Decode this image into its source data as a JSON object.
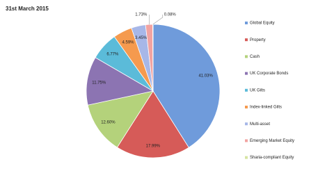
{
  "chart_data": {
    "type": "pie",
    "title": "31st March 2015",
    "categories": [
      "Global Equity",
      "Property",
      "Cash",
      "UK Corporate Bonds",
      "UK Gilts",
      "Index-linked Gilts",
      "Multi-asset",
      "Emerging Market Equity",
      "Sharia-compliant Equity"
    ],
    "values": [
      41.03,
      17.99,
      12.6,
      11.75,
      6.77,
      4.59,
      3.45,
      1.73,
      0.08
    ],
    "value_labels": [
      "41.03%",
      "17.99%",
      "12.60%",
      "11.75%",
      "6.77%",
      "4.59%",
      "3.45%",
      "1.73%",
      "0.08%"
    ],
    "colors": [
      "#6f9bdb",
      "#d65b58",
      "#b4d27b",
      "#8c74b2",
      "#5bbbd9",
      "#f59a4e",
      "#a7b7e8",
      "#f2a3a1",
      "#d6e4a2"
    ]
  }
}
